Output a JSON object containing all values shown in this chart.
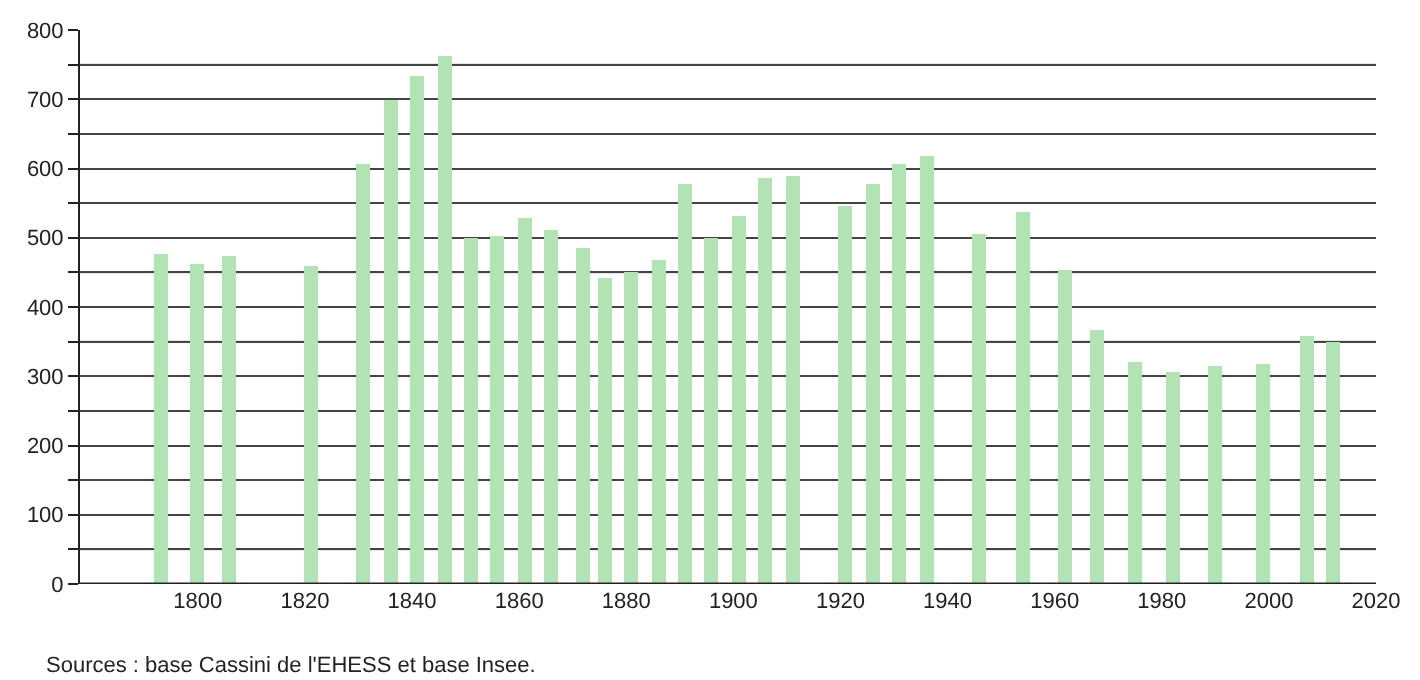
{
  "chart_data": {
    "type": "bar",
    "x": [
      1793,
      1800,
      1806,
      1821,
      1831,
      1836,
      1841,
      1846,
      1851,
      1856,
      1861,
      1866,
      1872,
      1876,
      1881,
      1886,
      1891,
      1896,
      1901,
      1906,
      1911,
      1921,
      1926,
      1931,
      1936,
      1946,
      1954,
      1962,
      1968,
      1975,
      1982,
      1990,
      1999,
      2007,
      2012
    ],
    "values": [
      476,
      462,
      473,
      460,
      606,
      700,
      735,
      763,
      500,
      503,
      528,
      510,
      484,
      443,
      450,
      468,
      578,
      500,
      531,
      587,
      589,
      545,
      578,
      606,
      617,
      506,
      537,
      454,
      368,
      322,
      305,
      316,
      319,
      357,
      349
    ],
    "color": "#b2e3b4",
    "xlim": [
      1778,
      2020
    ],
    "xticks": [
      1800,
      1820,
      1840,
      1860,
      1880,
      1900,
      1920,
      1940,
      1960,
      1980,
      2000,
      2020
    ],
    "ylim": [
      0,
      800
    ],
    "yticks": [
      0,
      {
        "value": 50,
        "label": null
      },
      100,
      {
        "value": 150,
        "label": null
      },
      200,
      {
        "value": 250,
        "label": null
      },
      300,
      {
        "value": 350,
        "label": null
      },
      400,
      {
        "value": 450,
        "label": null
      },
      500,
      {
        "value": 550,
        "label": null
      },
      600,
      {
        "value": 650,
        "label": null
      },
      700,
      {
        "value": 750,
        "label": null
      },
      800
    ],
    "grid": "y",
    "legend": false,
    "annotations": [
      "Sources : base Cassini de l'EHESS et base Insee."
    ]
  }
}
